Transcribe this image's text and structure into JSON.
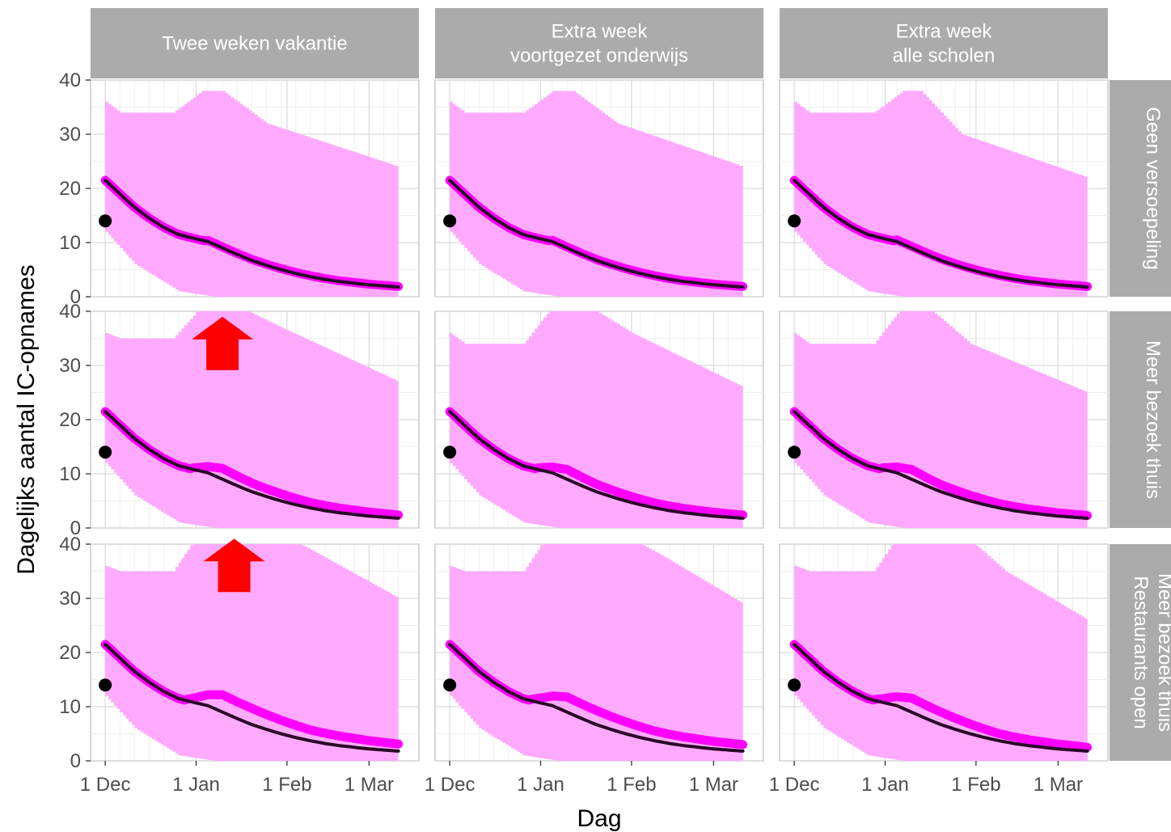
{
  "chart_data": {
    "type": "line",
    "layout": "facet-grid",
    "xlabel": "Dag",
    "ylabel": "Dagelijks aantal IC-opnames",
    "ylim": [
      0,
      40
    ],
    "yticks": [
      0,
      10,
      20,
      30,
      40
    ],
    "xlim": [
      -5,
      107
    ],
    "xticks": [
      {
        "label": "1 Dec",
        "day": 0
      },
      {
        "label": "1 Jan",
        "day": 31
      },
      {
        "label": "1 Feb",
        "day": 62
      },
      {
        "label": "1 Mar",
        "day": 90
      }
    ],
    "grid": true,
    "columns": [
      "Twee weken vakantie",
      "Extra week\nvoortgezet onderwijs",
      "Extra week\nalle scholen"
    ],
    "rows": [
      "Geen versoepeling",
      "Meer bezoek thuis",
      "Meer bezoek thuis\nRestaurants open"
    ],
    "colors": {
      "band": "#ffaaff",
      "scenario_line": "#ff00ff",
      "baseline_line": "#2a0a28",
      "observed_point": "#000000",
      "arrow": "#ff0000",
      "strip": "#ababab"
    },
    "observed_point": {
      "day": 0,
      "value": 14
    },
    "baseline_line": [
      {
        "day": 0,
        "value": 21.5
      },
      {
        "day": 5,
        "value": 19.0
      },
      {
        "day": 10,
        "value": 16.5
      },
      {
        "day": 15,
        "value": 14.5
      },
      {
        "day": 20,
        "value": 12.8
      },
      {
        "day": 25,
        "value": 11.5
      },
      {
        "day": 30,
        "value": 10.8
      },
      {
        "day": 35,
        "value": 10.2
      },
      {
        "day": 40,
        "value": 9.0
      },
      {
        "day": 45,
        "value": 7.8
      },
      {
        "day": 50,
        "value": 6.7
      },
      {
        "day": 55,
        "value": 5.8
      },
      {
        "day": 60,
        "value": 5.0
      },
      {
        "day": 65,
        "value": 4.3
      },
      {
        "day": 70,
        "value": 3.7
      },
      {
        "day": 75,
        "value": 3.2
      },
      {
        "day": 80,
        "value": 2.8
      },
      {
        "day": 85,
        "value": 2.5
      },
      {
        "day": 90,
        "value": 2.2
      },
      {
        "day": 95,
        "value": 2.0
      },
      {
        "day": 100,
        "value": 1.8
      }
    ],
    "panels": [
      {
        "row": 0,
        "col": 0,
        "arrow": false,
        "scenario_bump": [
          {
            "day": 35,
            "value": 0.2
          },
          {
            "day": 50,
            "value": 0.2
          },
          {
            "day": 100,
            "value": 0.1
          }
        ],
        "band_upper": [
          {
            "day": 0,
            "value": 36
          },
          {
            "day": 5,
            "value": 34
          },
          {
            "day": 23,
            "value": 34
          },
          {
            "day": 33,
            "value": 38
          },
          {
            "day": 40,
            "value": 38
          },
          {
            "day": 55,
            "value": 32
          },
          {
            "day": 100,
            "value": 24
          }
        ],
        "band_lower": [
          {
            "day": 0,
            "value": 12
          },
          {
            "day": 10,
            "value": 6
          },
          {
            "day": 25,
            "value": 1
          },
          {
            "day": 37,
            "value": 0
          },
          {
            "day": 100,
            "value": 0
          }
        ]
      },
      {
        "row": 0,
        "col": 1,
        "arrow": false,
        "scenario_bump": [
          {
            "day": 35,
            "value": 0.2
          },
          {
            "day": 50,
            "value": 0.2
          },
          {
            "day": 100,
            "value": 0.1
          }
        ],
        "band_upper": [
          {
            "day": 0,
            "value": 36
          },
          {
            "day": 5,
            "value": 34
          },
          {
            "day": 25,
            "value": 34
          },
          {
            "day": 35,
            "value": 38
          },
          {
            "day": 42,
            "value": 38
          },
          {
            "day": 57,
            "value": 32
          },
          {
            "day": 100,
            "value": 24
          }
        ],
        "band_lower": [
          {
            "day": 0,
            "value": 12
          },
          {
            "day": 10,
            "value": 6
          },
          {
            "day": 25,
            "value": 1
          },
          {
            "day": 37,
            "value": 0
          },
          {
            "day": 100,
            "value": 0
          }
        ]
      },
      {
        "row": 0,
        "col": 2,
        "arrow": false,
        "scenario_bump": [
          {
            "day": 35,
            "value": 0.3
          },
          {
            "day": 50,
            "value": 0.3
          },
          {
            "day": 100,
            "value": 0.1
          }
        ],
        "band_upper": [
          {
            "day": 0,
            "value": 36
          },
          {
            "day": 5,
            "value": 34
          },
          {
            "day": 27,
            "value": 34
          },
          {
            "day": 37,
            "value": 38
          },
          {
            "day": 43,
            "value": 38
          },
          {
            "day": 57,
            "value": 30
          },
          {
            "day": 100,
            "value": 22
          }
        ],
        "band_lower": [
          {
            "day": 0,
            "value": 12
          },
          {
            "day": 10,
            "value": 6
          },
          {
            "day": 25,
            "value": 1
          },
          {
            "day": 37,
            "value": 0
          },
          {
            "day": 100,
            "value": 0
          }
        ]
      },
      {
        "row": 1,
        "col": 0,
        "arrow": true,
        "scenario_bump": [
          {
            "day": 30,
            "value": 0.3
          },
          {
            "day": 40,
            "value": 2.0
          },
          {
            "day": 50,
            "value": 1.6
          },
          {
            "day": 70,
            "value": 1.0
          },
          {
            "day": 100,
            "value": 0.6
          }
        ],
        "band_upper": [
          {
            "day": 0,
            "value": 36
          },
          {
            "day": 5,
            "value": 35
          },
          {
            "day": 23,
            "value": 35
          },
          {
            "day": 33,
            "value": 41
          },
          {
            "day": 45,
            "value": 41
          },
          {
            "day": 60,
            "value": 37
          },
          {
            "day": 100,
            "value": 27
          }
        ],
        "band_lower": [
          {
            "day": 0,
            "value": 12
          },
          {
            "day": 10,
            "value": 6
          },
          {
            "day": 25,
            "value": 1
          },
          {
            "day": 37,
            "value": 0
          },
          {
            "day": 100,
            "value": 0
          }
        ]
      },
      {
        "row": 1,
        "col": 1,
        "arrow": false,
        "scenario_bump": [
          {
            "day": 30,
            "value": 0.3
          },
          {
            "day": 40,
            "value": 1.8
          },
          {
            "day": 50,
            "value": 1.4
          },
          {
            "day": 70,
            "value": 0.9
          },
          {
            "day": 100,
            "value": 0.6
          }
        ],
        "band_upper": [
          {
            "day": 0,
            "value": 36
          },
          {
            "day": 5,
            "value": 34
          },
          {
            "day": 25,
            "value": 34
          },
          {
            "day": 35,
            "value": 41
          },
          {
            "day": 47,
            "value": 41
          },
          {
            "day": 62,
            "value": 36
          },
          {
            "day": 100,
            "value": 26
          }
        ],
        "band_lower": [
          {
            "day": 0,
            "value": 12
          },
          {
            "day": 10,
            "value": 6
          },
          {
            "day": 25,
            "value": 1
          },
          {
            "day": 37,
            "value": 0
          },
          {
            "day": 100,
            "value": 0
          }
        ]
      },
      {
        "row": 1,
        "col": 2,
        "arrow": false,
        "scenario_bump": [
          {
            "day": 30,
            "value": 0.3
          },
          {
            "day": 40,
            "value": 1.8
          },
          {
            "day": 50,
            "value": 1.3
          },
          {
            "day": 70,
            "value": 0.8
          },
          {
            "day": 100,
            "value": 0.5
          }
        ],
        "band_upper": [
          {
            "day": 0,
            "value": 36
          },
          {
            "day": 5,
            "value": 34
          },
          {
            "day": 27,
            "value": 34
          },
          {
            "day": 37,
            "value": 41
          },
          {
            "day": 45,
            "value": 41
          },
          {
            "day": 60,
            "value": 34
          },
          {
            "day": 100,
            "value": 25
          }
        ],
        "band_lower": [
          {
            "day": 0,
            "value": 12
          },
          {
            "day": 10,
            "value": 6
          },
          {
            "day": 25,
            "value": 1
          },
          {
            "day": 37,
            "value": 0
          },
          {
            "day": 100,
            "value": 0
          }
        ]
      },
      {
        "row": 2,
        "col": 0,
        "arrow": true,
        "scenario_bump": [
          {
            "day": 28,
            "value": 0.3
          },
          {
            "day": 40,
            "value": 3.2
          },
          {
            "day": 50,
            "value": 3.0
          },
          {
            "day": 70,
            "value": 2.0
          },
          {
            "day": 100,
            "value": 1.3
          }
        ],
        "band_upper": [
          {
            "day": 0,
            "value": 36
          },
          {
            "day": 5,
            "value": 35
          },
          {
            "day": 23,
            "value": 35
          },
          {
            "day": 33,
            "value": 43
          },
          {
            "day": 55,
            "value": 43
          },
          {
            "day": 70,
            "value": 39
          },
          {
            "day": 100,
            "value": 30
          }
        ],
        "band_lower": [
          {
            "day": 0,
            "value": 12
          },
          {
            "day": 10,
            "value": 6
          },
          {
            "day": 25,
            "value": 1
          },
          {
            "day": 37,
            "value": 0
          },
          {
            "day": 100,
            "value": 0
          }
        ]
      },
      {
        "row": 2,
        "col": 1,
        "arrow": false,
        "scenario_bump": [
          {
            "day": 28,
            "value": 0.3
          },
          {
            "day": 40,
            "value": 2.8
          },
          {
            "day": 50,
            "value": 2.6
          },
          {
            "day": 70,
            "value": 1.8
          },
          {
            "day": 100,
            "value": 1.2
          }
        ],
        "band_upper": [
          {
            "day": 0,
            "value": 36
          },
          {
            "day": 5,
            "value": 35
          },
          {
            "day": 25,
            "value": 35
          },
          {
            "day": 35,
            "value": 43
          },
          {
            "day": 55,
            "value": 43
          },
          {
            "day": 72,
            "value": 38
          },
          {
            "day": 100,
            "value": 29
          }
        ],
        "band_lower": [
          {
            "day": 0,
            "value": 12
          },
          {
            "day": 10,
            "value": 6
          },
          {
            "day": 25,
            "value": 1
          },
          {
            "day": 37,
            "value": 0
          },
          {
            "day": 100,
            "value": 0
          }
        ]
      },
      {
        "row": 2,
        "col": 2,
        "arrow": false,
        "scenario_bump": [
          {
            "day": 28,
            "value": 0.3
          },
          {
            "day": 40,
            "value": 2.6
          },
          {
            "day": 50,
            "value": 2.3
          },
          {
            "day": 70,
            "value": 1.3
          },
          {
            "day": 100,
            "value": 0.7
          }
        ],
        "band_upper": [
          {
            "day": 0,
            "value": 36
          },
          {
            "day": 5,
            "value": 35
          },
          {
            "day": 27,
            "value": 35
          },
          {
            "day": 37,
            "value": 43
          },
          {
            "day": 55,
            "value": 43
          },
          {
            "day": 72,
            "value": 35
          },
          {
            "day": 100,
            "value": 26
          }
        ],
        "band_lower": [
          {
            "day": 0,
            "value": 12
          },
          {
            "day": 10,
            "value": 6
          },
          {
            "day": 25,
            "value": 1
          },
          {
            "day": 37,
            "value": 0
          },
          {
            "day": 100,
            "value": 0
          }
        ]
      }
    ]
  }
}
